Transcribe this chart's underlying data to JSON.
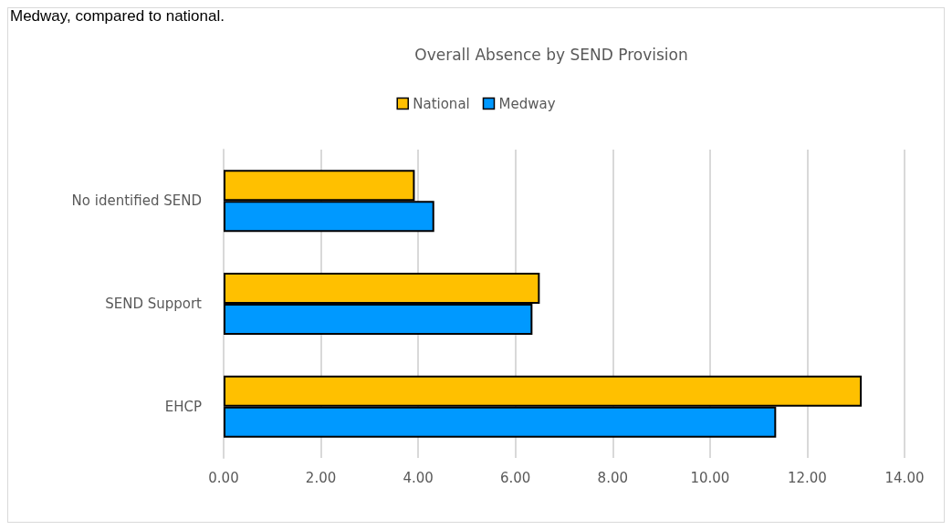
{
  "chart_data": {
    "type": "bar",
    "orientation": "horizontal",
    "title": "Overall Absence by SEND Provision",
    "annotations": [
      "Medway, compared to national."
    ],
    "categories": [
      "No identified SEND",
      "SEND Support",
      "EHCP"
    ],
    "series": [
      {
        "name": "National",
        "color": "#ffc000",
        "values": [
          3.93,
          6.5,
          13.12
        ]
      },
      {
        "name": "Medway",
        "color": "#0099ff",
        "values": [
          4.33,
          6.35,
          11.36
        ]
      }
    ],
    "xlim": [
      0,
      14
    ],
    "xticks": [
      {
        "value": 0,
        "label": "0.00"
      },
      {
        "value": 2,
        "label": "2.00"
      },
      {
        "value": 4,
        "label": "4.00"
      },
      {
        "value": 6,
        "label": "6.00"
      },
      {
        "value": 8,
        "label": "8.00"
      },
      {
        "value": 10,
        "label": "10.00"
      },
      {
        "value": 12,
        "label": "12.00"
      },
      {
        "value": 14,
        "label": "14.00"
      }
    ],
    "grid": "x",
    "legend": "top"
  }
}
